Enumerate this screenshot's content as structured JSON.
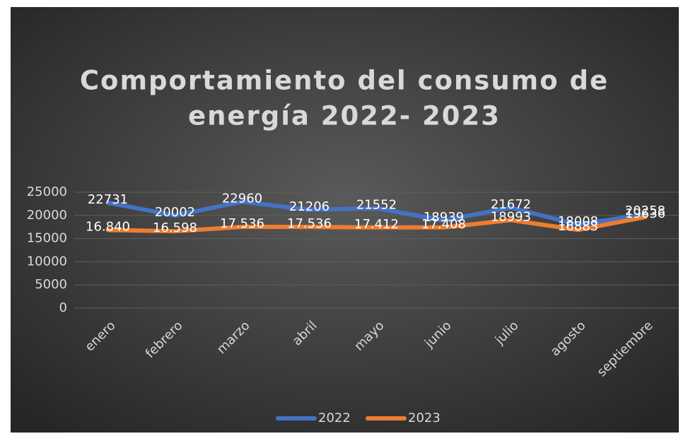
{
  "chart_data": {
    "type": "line",
    "title": [
      "Comportamiento del consumo de",
      "energía 2022- 2023"
    ],
    "categories": [
      "enero",
      "febrero",
      "marzo",
      "abril",
      "mayo",
      "junio",
      "julio",
      "agosto",
      "septiembre"
    ],
    "series": [
      {
        "name": "2022",
        "color": "#4472c4",
        "values": [
          22731,
          20002,
          22960,
          21206,
          21552,
          18939,
          21672,
          18008,
          20258
        ]
      },
      {
        "name": "2023",
        "color": "#ed7d31",
        "values": [
          16840,
          16598,
          17536,
          17536,
          17412,
          17408,
          18993,
          16883,
          19636
        ],
        "value_labels": [
          "16.840",
          "16.598",
          "17.536",
          "17.536",
          "17.412",
          "17.408",
          "18993",
          "16883",
          "19636"
        ]
      }
    ],
    "ylim": [
      0,
      25000
    ],
    "yticks": [
      0,
      5000,
      10000,
      15000,
      20000,
      25000
    ],
    "grid": true,
    "legend": "bottom"
  }
}
